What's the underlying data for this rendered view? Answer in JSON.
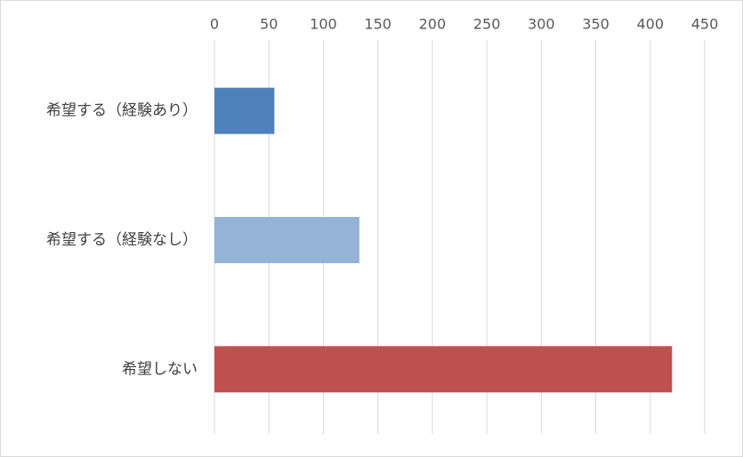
{
  "chart_data": {
    "type": "bar",
    "orientation": "horizontal",
    "categories": [
      "希望する（経験あり）",
      "希望する（経験なし）",
      "希望しない"
    ],
    "values": [
      55,
      133,
      420
    ],
    "colors": [
      "#4f81bd",
      "#95b3d7",
      "#c0504d"
    ],
    "xlim": [
      0,
      450
    ],
    "xticks": [
      0,
      50,
      100,
      150,
      200,
      250,
      300,
      350,
      400,
      450
    ],
    "grid": true
  }
}
